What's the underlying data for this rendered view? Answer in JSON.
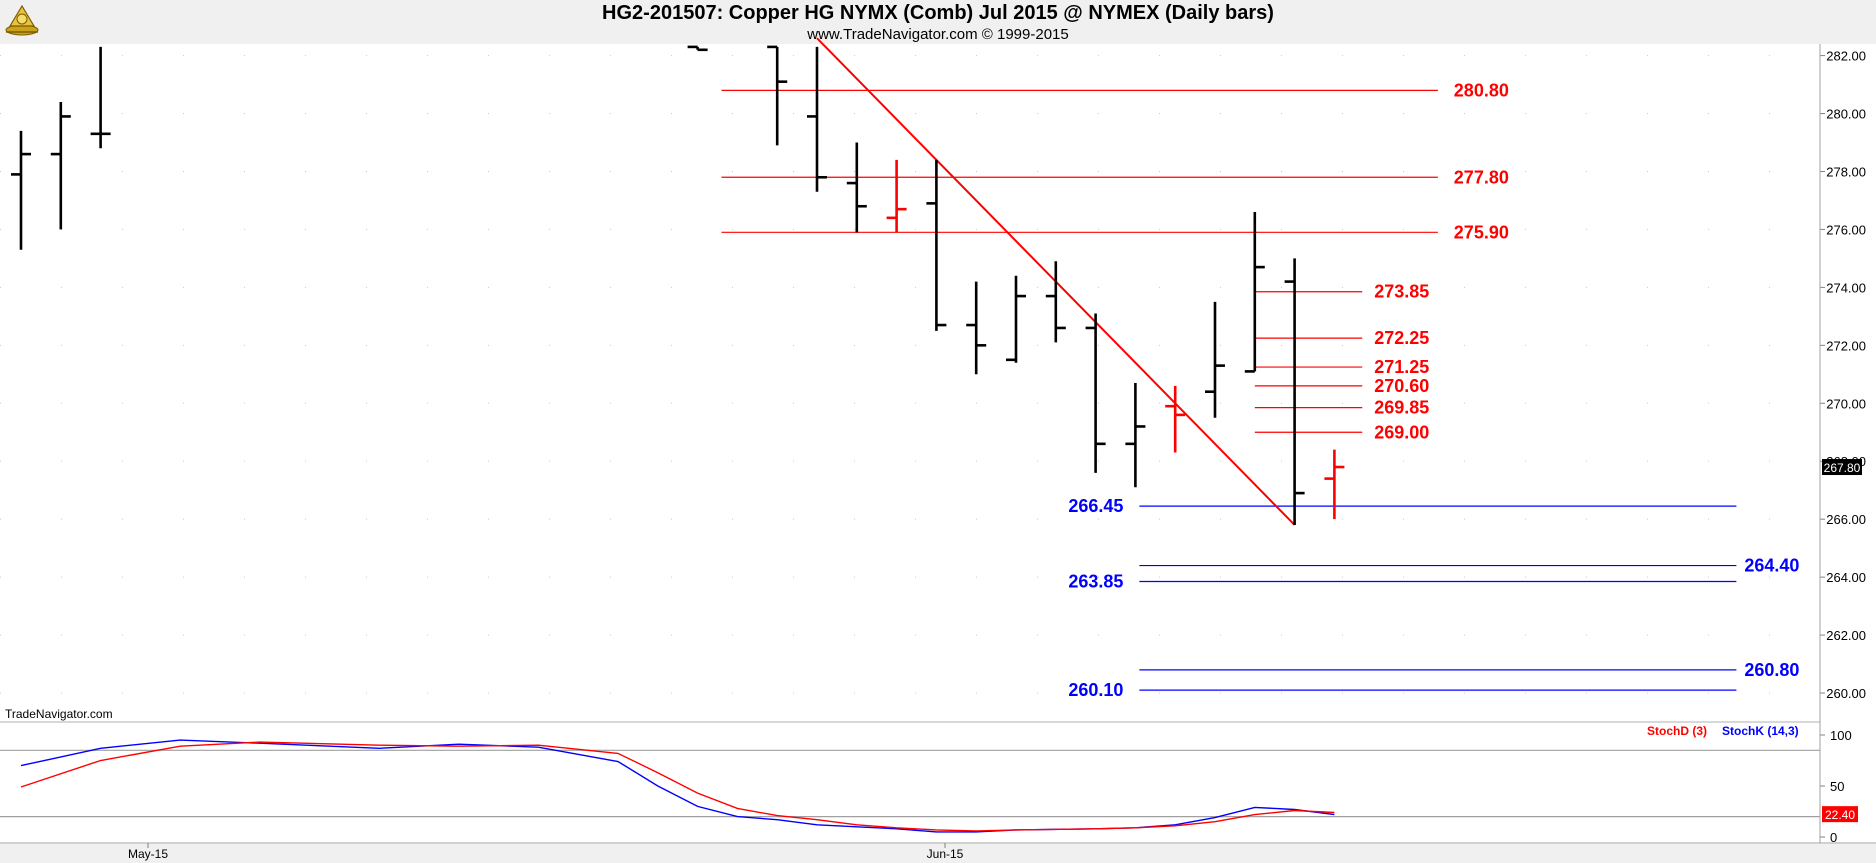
{
  "title": "HG2-201507:  Copper HG NYMX (Comb) Jul 2015 @ NYMEX  (Daily bars)",
  "subtitle": "www.TradeNavigator.com © 1999-2015",
  "watermark": "TradeNavigator.com",
  "colors": {
    "bar": "#000000",
    "red": "#ff0000",
    "blue": "#0000ff",
    "level_red": "#e00000"
  },
  "chart_data": [
    {
      "type": "ohlc",
      "title": "HG2-201507:  Copper HG NYMX (Comb) Jul 2015 @ NYMEX  (Daily bars)",
      "x_tick_labels": [
        "May-15",
        "Jun-15"
      ],
      "y_ticks": [
        "282.00",
        "280.00",
        "278.00",
        "276.00",
        "274.00",
        "272.00",
        "270.00",
        "268.00",
        "266.00",
        "264.00",
        "262.00",
        "260.00"
      ],
      "ylim": [
        259.0,
        282.4
      ],
      "last_price": "267.80",
      "grid": true,
      "bars": [
        {
          "i": 0,
          "o": 277.9,
          "h": 279.4,
          "l": 275.3,
          "c": 278.6,
          "color": "black"
        },
        {
          "i": 1,
          "o": 278.6,
          "h": 280.4,
          "l": 276.0,
          "c": 279.9,
          "color": "black"
        },
        {
          "i": 2,
          "o": 279.3,
          "h": 282.3,
          "l": 278.8,
          "c": 279.3,
          "color": "black"
        },
        {
          "i": 17,
          "o": 282.3,
          "h": 282.3,
          "l": 282.2,
          "c": 282.2,
          "color": "black"
        },
        {
          "i": 19,
          "o": 282.3,
          "h": 282.3,
          "l": 278.9,
          "c": 281.1,
          "color": "black"
        },
        {
          "i": 20,
          "o": 279.9,
          "h": 282.3,
          "l": 277.3,
          "c": 277.8,
          "color": "black"
        },
        {
          "i": 21,
          "o": 277.6,
          "h": 279.0,
          "l": 275.9,
          "c": 276.8,
          "color": "black"
        },
        {
          "i": 22,
          "o": 276.4,
          "h": 278.4,
          "l": 275.9,
          "c": 276.7,
          "color": "red"
        },
        {
          "i": 23,
          "o": 276.9,
          "h": 278.4,
          "l": 272.5,
          "c": 272.7,
          "color": "black"
        },
        {
          "i": 24,
          "o": 272.7,
          "h": 274.2,
          "l": 271.0,
          "c": 272.0,
          "color": "black"
        },
        {
          "i": 25,
          "o": 271.5,
          "h": 274.4,
          "l": 271.4,
          "c": 273.7,
          "color": "black"
        },
        {
          "i": 26,
          "o": 273.7,
          "h": 274.9,
          "l": 272.1,
          "c": 272.6,
          "color": "black"
        },
        {
          "i": 27,
          "o": 272.6,
          "h": 273.1,
          "l": 267.6,
          "c": 268.6,
          "color": "black"
        },
        {
          "i": 28,
          "o": 268.6,
          "h": 270.7,
          "l": 267.1,
          "c": 269.2,
          "color": "black"
        },
        {
          "i": 29,
          "o": 269.9,
          "h": 270.6,
          "l": 268.3,
          "c": 269.6,
          "color": "red"
        },
        {
          "i": 30,
          "o": 270.4,
          "h": 273.5,
          "l": 269.5,
          "c": 271.3,
          "color": "black"
        },
        {
          "i": 31,
          "o": 271.1,
          "h": 276.6,
          "l": 271.1,
          "c": 274.7,
          "color": "black"
        },
        {
          "i": 32,
          "o": 274.2,
          "h": 275.0,
          "l": 265.8,
          "c": 266.9,
          "color": "black"
        },
        {
          "i": 33,
          "o": 267.4,
          "h": 268.4,
          "l": 266.0,
          "c": 267.8,
          "color": "red"
        }
      ],
      "trendline": {
        "from": {
          "i": 20,
          "price": 282.6
        },
        "to": {
          "i": 32,
          "price": 265.8
        },
        "color": "red"
      },
      "levels": [
        {
          "label": "280.80",
          "price": 280.8,
          "color": "red",
          "from_i": 17.6,
          "to_i": 35.6,
          "label_i": 36.0
        },
        {
          "label": "277.80",
          "price": 277.8,
          "color": "red",
          "from_i": 17.6,
          "to_i": 35.6,
          "label_i": 36.0
        },
        {
          "label": "275.90",
          "price": 275.9,
          "color": "red",
          "from_i": 17.6,
          "to_i": 35.6,
          "label_i": 36.0
        },
        {
          "label": "273.85",
          "price": 273.85,
          "color": "red",
          "from_i": 31.0,
          "to_i": 33.7,
          "label_i": 34.0
        },
        {
          "label": "272.25",
          "price": 272.25,
          "color": "red",
          "from_i": 31.0,
          "to_i": 33.7,
          "label_i": 34.0
        },
        {
          "label": "271.25",
          "price": 271.25,
          "color": "red",
          "from_i": 31.0,
          "to_i": 33.7,
          "label_i": 34.0
        },
        {
          "label": "270.60",
          "price": 270.6,
          "color": "red",
          "from_i": 31.0,
          "to_i": 33.7,
          "label_i": 34.0
        },
        {
          "label": "269.85",
          "price": 269.85,
          "color": "red",
          "from_i": 31.0,
          "to_i": 33.7,
          "label_i": 34.0
        },
        {
          "label": "269.00",
          "price": 269.0,
          "color": "red",
          "from_i": 31.0,
          "to_i": 33.7,
          "label_i": 34.0
        },
        {
          "label": "266.45",
          "price": 266.45,
          "color": "blue",
          "from_i": 28.1,
          "to_i": 43.1,
          "label_i": 27.7,
          "label_side": "left"
        },
        {
          "label": "264.40",
          "price": 264.4,
          "color": "blue",
          "from_i": 28.1,
          "to_i": 43.1,
          "label_i": 43.3
        },
        {
          "label": "263.85",
          "price": 263.85,
          "color": "blue",
          "from_i": 28.1,
          "to_i": 43.1,
          "label_i": 27.7,
          "label_side": "left"
        },
        {
          "label": "260.80",
          "price": 260.8,
          "color": "blue",
          "from_i": 28.1,
          "to_i": 43.1,
          "label_i": 43.3
        },
        {
          "label": "260.10",
          "price": 260.1,
          "color": "blue",
          "from_i": 28.1,
          "to_i": 43.1,
          "label_i": 27.7,
          "label_side": "left"
        }
      ]
    },
    {
      "type": "line",
      "legend": [
        "StochD (3)",
        "StochK (14,3)"
      ],
      "y_ticks": [
        "100",
        "50",
        "0"
      ],
      "ylim": [
        0,
        100
      ],
      "reference_lines": [
        85,
        20
      ],
      "last_value": "22.40",
      "series": [
        {
          "name": "StochK (14,3)",
          "color": "blue",
          "points": [
            [
              0,
              70
            ],
            [
              2,
              87
            ],
            [
              4,
              95
            ],
            [
              6,
              92
            ],
            [
              9,
              87
            ],
            [
              11,
              91
            ],
            [
              13,
              88
            ],
            [
              15,
              74
            ],
            [
              16,
              50
            ],
            [
              17,
              30
            ],
            [
              18,
              20
            ],
            [
              19,
              17
            ],
            [
              20,
              12
            ],
            [
              21,
              10
            ],
            [
              22,
              8
            ],
            [
              23,
              5
            ],
            [
              24,
              5
            ],
            [
              25,
              7
            ],
            [
              27,
              8
            ],
            [
              28,
              9
            ],
            [
              29,
              12
            ],
            [
              30,
              19
            ],
            [
              31,
              29
            ],
            [
              32,
              27
            ],
            [
              33,
              22
            ]
          ]
        },
        {
          "name": "StochD (3)",
          "color": "red",
          "points": [
            [
              0,
              49
            ],
            [
              2,
              75
            ],
            [
              4,
              89
            ],
            [
              6,
              93
            ],
            [
              9,
              90
            ],
            [
              11,
              89
            ],
            [
              13,
              90
            ],
            [
              15,
              82
            ],
            [
              16,
              63
            ],
            [
              17,
              43
            ],
            [
              18,
              28
            ],
            [
              19,
              21
            ],
            [
              20,
              17
            ],
            [
              21,
              12
            ],
            [
              22,
              9
            ],
            [
              23,
              7
            ],
            [
              24,
              6
            ],
            [
              25,
              7
            ],
            [
              27,
              8
            ],
            [
              28,
              9
            ],
            [
              29,
              11
            ],
            [
              30,
              15
            ],
            [
              31,
              22
            ],
            [
              32,
              26
            ],
            [
              33,
              24
            ]
          ]
        }
      ]
    }
  ]
}
